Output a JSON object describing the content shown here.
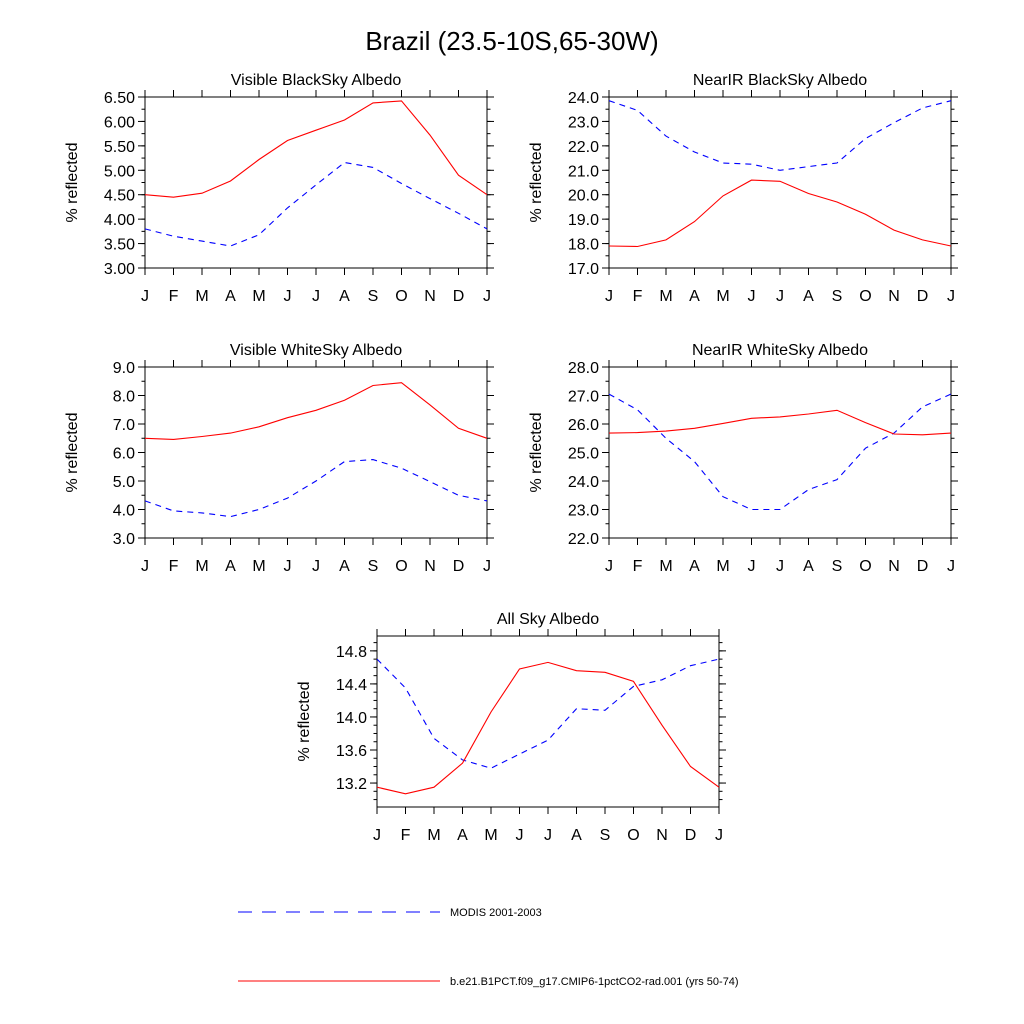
{
  "figure": {
    "title": "Brazil (23.5-10S,65-30W)"
  },
  "colors": {
    "modis": "#0000ff",
    "model": "#ff0000"
  },
  "legend": {
    "placement": "bottom",
    "entries": [
      {
        "name": "MODIS 2001-2003",
        "style": "dashed",
        "color": "#0000ff"
      },
      {
        "name": "b.e21.B1PCT.f09_g17.CMIP6-1pctCO2-rad.001 (yrs 50-74)",
        "style": "solid",
        "color": "#ff0000"
      }
    ]
  },
  "chart_data": [
    {
      "type": "line",
      "title": "Visible BlackSky Albedo",
      "ylabel": "% reflected",
      "categories": [
        "J",
        "F",
        "M",
        "A",
        "M",
        "J",
        "J",
        "A",
        "S",
        "O",
        "N",
        "D",
        "J"
      ],
      "ylim": [
        3.0,
        6.5
      ],
      "yticks": [
        "3.00",
        "3.50",
        "4.00",
        "4.50",
        "5.00",
        "5.50",
        "6.00",
        "6.50"
      ],
      "yminor": 0.25,
      "series": [
        {
          "name": "MODIS 2001-2003",
          "values": [
            3.8,
            3.65,
            3.55,
            3.45,
            3.68,
            4.23,
            4.7,
            5.16,
            5.06,
            4.73,
            4.42,
            4.12,
            3.8
          ]
        },
        {
          "name": "b.e21.B1PCT.f09_g17.CMIP6-1pctCO2-rad.001 (yrs 50-74)",
          "values": [
            4.5,
            4.45,
            4.53,
            4.78,
            5.22,
            5.61,
            5.82,
            6.03,
            6.38,
            6.42,
            5.72,
            4.9,
            4.5
          ]
        }
      ]
    },
    {
      "type": "line",
      "title": "NearIR BlackSky Albedo",
      "ylabel": "% reflected",
      "categories": [
        "J",
        "F",
        "M",
        "A",
        "M",
        "J",
        "J",
        "A",
        "S",
        "O",
        "N",
        "D",
        "J"
      ],
      "ylim": [
        17.0,
        24.0
      ],
      "yticks": [
        "17.0",
        "18.0",
        "19.0",
        "20.0",
        "21.0",
        "22.0",
        "23.0",
        "24.0"
      ],
      "yminor": 0.5,
      "series": [
        {
          "name": "MODIS 2001-2003",
          "values": [
            23.85,
            23.45,
            22.4,
            21.75,
            21.3,
            21.25,
            21.0,
            21.15,
            21.3,
            22.3,
            22.95,
            23.55,
            23.85
          ]
        },
        {
          "name": "b.e21.B1PCT.f09_g17.CMIP6-1pctCO2-rad.001 (yrs 50-74)",
          "values": [
            17.9,
            17.88,
            18.15,
            18.9,
            19.95,
            20.6,
            20.55,
            20.05,
            19.7,
            19.2,
            18.55,
            18.15,
            17.9
          ]
        }
      ]
    },
    {
      "type": "line",
      "title": "Visible WhiteSky Albedo",
      "ylabel": "% reflected",
      "categories": [
        "J",
        "F",
        "M",
        "A",
        "M",
        "J",
        "J",
        "A",
        "S",
        "O",
        "N",
        "D",
        "J"
      ],
      "ylim": [
        3.0,
        9.0
      ],
      "yticks": [
        "3.0",
        "4.0",
        "5.0",
        "6.0",
        "7.0",
        "8.0",
        "9.0"
      ],
      "yminor": 0.5,
      "series": [
        {
          "name": "MODIS 2001-2003",
          "values": [
            4.3,
            3.95,
            3.88,
            3.75,
            4.0,
            4.4,
            5.0,
            5.68,
            5.75,
            5.45,
            4.98,
            4.5,
            4.3
          ]
        },
        {
          "name": "b.e21.B1PCT.f09_g17.CMIP6-1pctCO2-rad.001 (yrs 50-74)",
          "values": [
            6.5,
            6.46,
            6.56,
            6.68,
            6.9,
            7.22,
            7.48,
            7.83,
            8.35,
            8.45,
            7.67,
            6.85,
            6.5
          ]
        }
      ]
    },
    {
      "type": "line",
      "title": "NearIR WhiteSky Albedo",
      "ylabel": "% reflected",
      "categories": [
        "J",
        "F",
        "M",
        "A",
        "M",
        "J",
        "J",
        "A",
        "S",
        "O",
        "N",
        "D",
        "J"
      ],
      "ylim": [
        22.0,
        28.0
      ],
      "yticks": [
        "22.0",
        "23.0",
        "24.0",
        "25.0",
        "26.0",
        "27.0",
        "28.0"
      ],
      "yminor": 0.5,
      "series": [
        {
          "name": "MODIS 2001-2003",
          "values": [
            27.05,
            26.5,
            25.5,
            24.68,
            23.45,
            23.0,
            23.0,
            23.7,
            24.05,
            25.15,
            25.68,
            26.6,
            27.05
          ]
        },
        {
          "name": "b.e21.B1PCT.f09_g17.CMIP6-1pctCO2-rad.001 (yrs 50-74)",
          "values": [
            25.68,
            25.7,
            25.75,
            25.85,
            26.02,
            26.2,
            26.25,
            26.35,
            26.48,
            26.05,
            25.65,
            25.62,
            25.68
          ]
        }
      ]
    },
    {
      "type": "line",
      "title": "All Sky Albedo",
      "ylabel": "% reflected",
      "categories": [
        "J",
        "F",
        "M",
        "A",
        "M",
        "J",
        "J",
        "A",
        "S",
        "O",
        "N",
        "D",
        "J"
      ],
      "ylim": [
        12.91,
        14.98
      ],
      "yticks": [
        "13.2",
        "13.6",
        "14.0",
        "14.4",
        "14.8"
      ],
      "ytickvalues": [
        13.2,
        13.6,
        14.0,
        14.4,
        14.8
      ],
      "yminor": 0.1,
      "series": [
        {
          "name": "MODIS 2001-2003",
          "values": [
            14.7,
            14.35,
            13.74,
            13.48,
            13.38,
            13.55,
            13.72,
            14.1,
            14.08,
            14.37,
            14.45,
            14.62,
            14.7
          ]
        },
        {
          "name": "b.e21.B1PCT.f09_g17.CMIP6-1pctCO2-rad.001 (yrs 50-74)",
          "values": [
            13.15,
            13.07,
            13.15,
            13.44,
            14.06,
            14.58,
            14.66,
            14.56,
            14.54,
            14.43,
            13.9,
            13.4,
            13.15
          ]
        }
      ]
    }
  ]
}
